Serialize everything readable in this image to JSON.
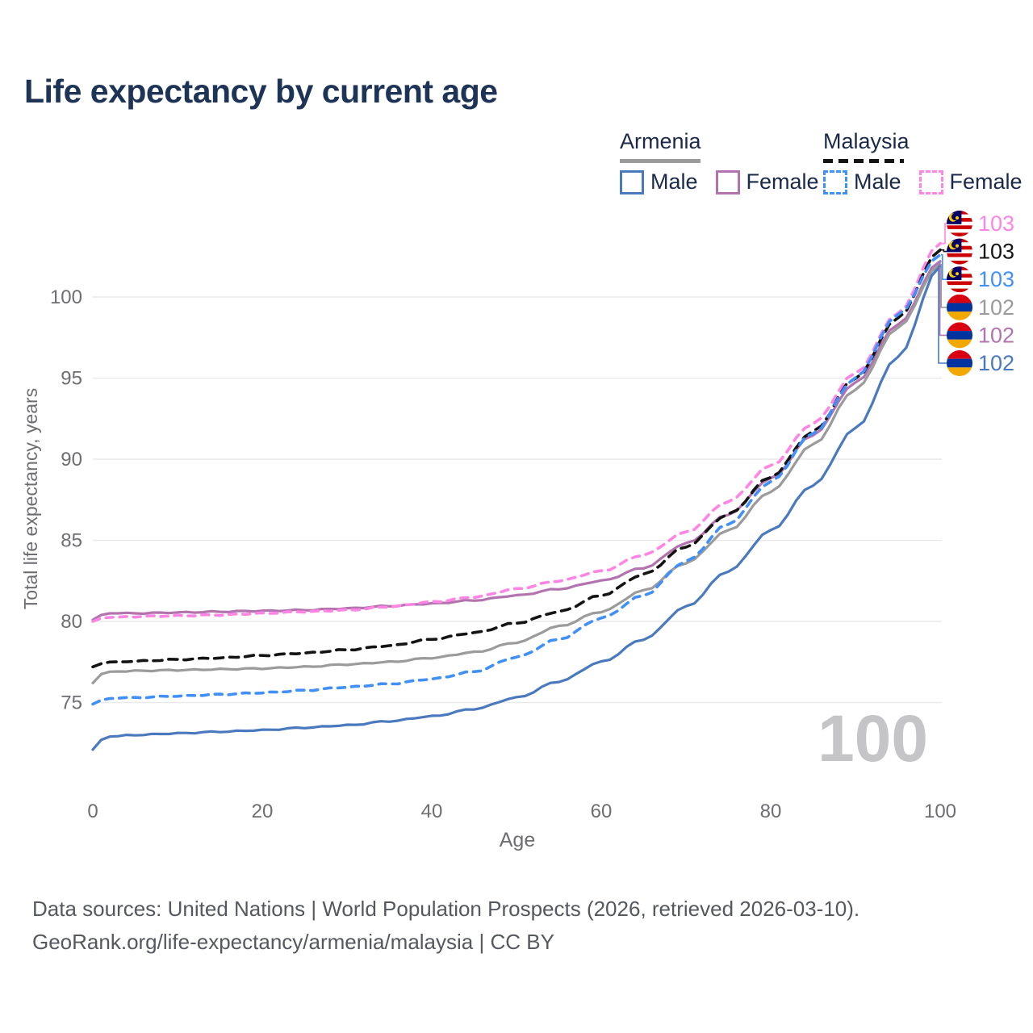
{
  "title": "Life expectancy by current age",
  "legend": {
    "groups": [
      {
        "country": "Armenia",
        "line_style": "solid",
        "underline_color": "#9b9b9b",
        "items": [
          {
            "label": "Male",
            "color": "#4a79bd"
          },
          {
            "label": "Female",
            "color": "#b273ae"
          }
        ]
      },
      {
        "country": "Malaysia",
        "line_style": "dashed",
        "underline_color": "#141414",
        "items": [
          {
            "label": "Male",
            "color": "#4190f7"
          },
          {
            "label": "Female",
            "color": "#ff85e4"
          }
        ]
      }
    ]
  },
  "watermark_age": "100",
  "chart_data": {
    "type": "line",
    "xlabel": "Age",
    "ylabel": "Total life expectancy, years",
    "x_ticks": [
      0,
      20,
      40,
      60,
      80,
      100
    ],
    "y_ticks": [
      100,
      95,
      90,
      85,
      80,
      75
    ],
    "xlim": [
      0,
      100
    ],
    "ylim": [
      71,
      104
    ],
    "grid": "horizontal",
    "legend_position": "top-right",
    "ages": [
      0,
      1,
      2,
      5,
      10,
      15,
      20,
      25,
      30,
      35,
      40,
      45,
      50,
      55,
      60,
      65,
      70,
      75,
      80,
      85,
      90,
      95,
      100
    ],
    "series": [
      {
        "name": "Armenia Female",
        "country": "Armenia",
        "sex": "Female",
        "color": "#b273ae",
        "dash": "solid",
        "values": [
          80.1,
          80.4,
          80.5,
          80.5,
          80.55,
          80.6,
          80.65,
          80.7,
          80.8,
          80.95,
          81.1,
          81.3,
          81.6,
          82.0,
          82.5,
          83.3,
          84.8,
          86.6,
          88.8,
          91.5,
          94.7,
          98.3,
          102.2
        ]
      },
      {
        "name": "Malaysia Female",
        "country": "Malaysia",
        "sex": "Female",
        "color": "#ff85e4",
        "dash": "dashed",
        "values": [
          80.0,
          80.2,
          80.25,
          80.3,
          80.35,
          80.4,
          80.5,
          80.6,
          80.7,
          80.9,
          81.2,
          81.5,
          82.0,
          82.5,
          83.1,
          84.1,
          85.5,
          87.4,
          89.6,
          92.2,
          95.3,
          99.0,
          103.3
        ]
      },
      {
        "name": "Malaysia",
        "country": "Malaysia",
        "sex": "Both",
        "color": "#141414",
        "dash": "dashed",
        "values": [
          77.2,
          77.4,
          77.5,
          77.55,
          77.65,
          77.75,
          77.9,
          78.05,
          78.25,
          78.5,
          78.9,
          79.3,
          79.9,
          80.6,
          81.6,
          82.9,
          84.6,
          86.6,
          88.9,
          91.7,
          95.0,
          98.7,
          102.9
        ]
      },
      {
        "name": "Armenia",
        "country": "Armenia",
        "sex": "Both",
        "color": "#9b9b9b",
        "dash": "solid",
        "values": [
          76.2,
          76.75,
          76.9,
          76.95,
          77.0,
          77.05,
          77.1,
          77.2,
          77.35,
          77.5,
          77.75,
          78.1,
          78.7,
          79.7,
          80.6,
          81.9,
          83.6,
          85.6,
          88.0,
          90.9,
          94.3,
          98.1,
          102.0
        ]
      },
      {
        "name": "Malaysia Male",
        "country": "Malaysia",
        "sex": "Male",
        "color": "#4190f7",
        "dash": "dashed",
        "values": [
          74.9,
          75.15,
          75.25,
          75.3,
          75.4,
          75.5,
          75.6,
          75.75,
          75.95,
          76.15,
          76.45,
          76.9,
          77.8,
          78.9,
          80.2,
          81.6,
          83.7,
          86.0,
          88.6,
          91.6,
          95.0,
          98.9,
          102.6
        ]
      },
      {
        "name": "Armenia Male",
        "country": "Armenia",
        "sex": "Male",
        "color": "#4a79bd",
        "dash": "solid",
        "values": [
          72.1,
          72.7,
          72.9,
          73.0,
          73.1,
          73.2,
          73.3,
          73.45,
          73.6,
          73.85,
          74.15,
          74.6,
          75.3,
          76.3,
          77.5,
          78.9,
          80.9,
          83.1,
          85.6,
          88.4,
          91.9,
          96.3,
          101.9
        ]
      }
    ],
    "end_labels": [
      {
        "value": "103",
        "series": "Malaysia Female",
        "flag": "malaysia",
        "color": "#ff85e4"
      },
      {
        "value": "103",
        "series": "Malaysia",
        "flag": "malaysia",
        "color": "#141414"
      },
      {
        "value": "103",
        "series": "Malaysia Male",
        "flag": "malaysia",
        "color": "#4190f7"
      },
      {
        "value": "102",
        "series": "Armenia",
        "flag": "armenia",
        "color": "#9b9b9b"
      },
      {
        "value": "102",
        "series": "Armenia Female",
        "flag": "armenia",
        "color": "#b273ae"
      },
      {
        "value": "102",
        "series": "Armenia Male",
        "flag": "armenia",
        "color": "#4a79bd"
      }
    ],
    "flag_colors": {
      "armenia": {
        "red": "#D90012",
        "blue": "#0033A0",
        "orange": "#F2A800"
      },
      "malaysia": {
        "red": "#CC0001",
        "white": "#FFFFFF",
        "blue": "#010066",
        "yellow": "#FFCC00"
      }
    }
  },
  "footer": {
    "line1": "Data sources: United Nations | World Population Prospects (2026, retrieved 2026-03-10).",
    "line2": "GeoRank.org/life-expectancy/armenia/malaysia | CC BY"
  }
}
